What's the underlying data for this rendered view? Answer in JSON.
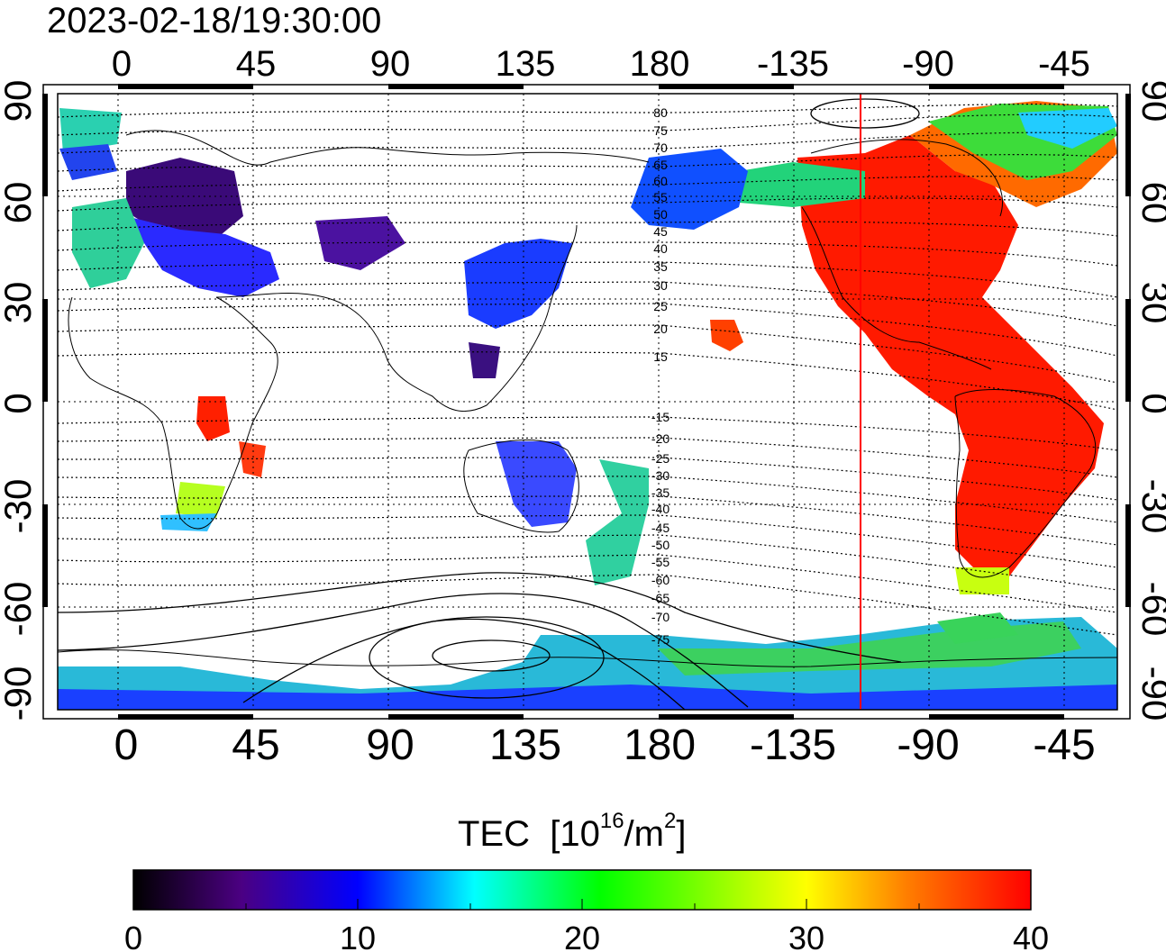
{
  "timestamp": "2023-02-18/19:30:00",
  "map": {
    "x_ticks_top": [
      "0",
      "45",
      "90",
      "135",
      "180",
      "-135",
      "-90",
      "-45"
    ],
    "x_ticks_bottom": [
      "0",
      "45",
      "90",
      "135",
      "180",
      "-135",
      "-90",
      "-45"
    ],
    "y_ticks_left": [
      "90",
      "60",
      "30",
      "0",
      "-30",
      "-60",
      "-90"
    ],
    "y_ticks_right": [
      "90",
      "60",
      "30",
      "0",
      "-30",
      "-60",
      "-90"
    ],
    "contour_labels": [
      "80",
      "75",
      "70",
      "65",
      "60",
      "55",
      "50",
      "45",
      "40",
      "35",
      "30",
      "25",
      "20",
      "15",
      "-15",
      "-20",
      "-25",
      "-30",
      "-35",
      "-40",
      "-45",
      "-50",
      "-55",
      "-60",
      "-65",
      "-70",
      "-75"
    ],
    "terminator_color": "#ff0000"
  },
  "colorbar": {
    "title": "TEC",
    "unit_base": "[10",
    "unit_exp": "16",
    "unit_mid": "/m",
    "unit_exp2": "2",
    "unit_close": "]",
    "ticks": [
      "0",
      "10",
      "20",
      "30",
      "40"
    ],
    "range": [
      0,
      40
    ],
    "colors": [
      "#000000",
      "#4b0082",
      "#0000ff",
      "#00ffff",
      "#00ff00",
      "#ffff00",
      "#ff8000",
      "#ff0000"
    ]
  }
}
